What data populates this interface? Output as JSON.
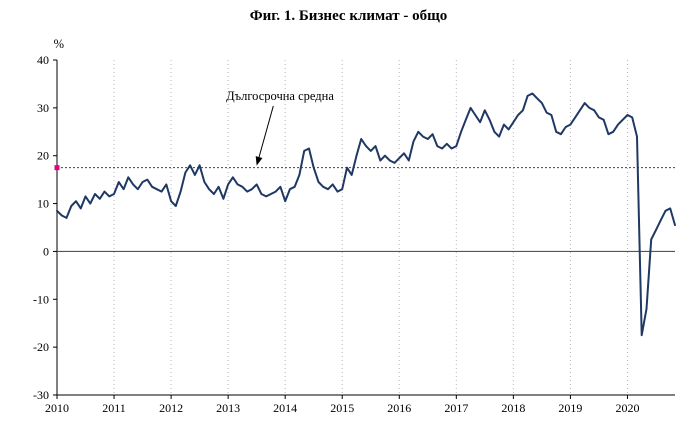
{
  "header": {
    "title": "Фиг. 1. Бизнес климат - общо"
  },
  "chart_data": {
    "type": "line",
    "title": "Фиг. 1. Бизнес климат - общо",
    "ylabel": "%",
    "ylim": [
      -30,
      40
    ],
    "yticks": [
      40,
      30,
      20,
      10,
      0,
      -10,
      -20,
      -30
    ],
    "x_year_ticks": [
      "2010",
      "2011",
      "2012",
      "2013",
      "2014",
      "2015",
      "2016",
      "2017",
      "2018",
      "2019",
      "2020"
    ],
    "x_start_month": "2010-01",
    "grid": {
      "vertical_dotted": true,
      "horizontal": false
    },
    "zero_line": true,
    "legend_position": "none",
    "long_term_average": {
      "label": "Дългосрочна средна",
      "value": 17.5,
      "marker_color": "#e6007e",
      "line_style": "dotted"
    },
    "series": [
      {
        "name": "Бизнес климат - общо",
        "color": "#1f3864",
        "values": [
          8.5,
          7.5,
          7.0,
          9.5,
          10.5,
          9.0,
          11.5,
          10.0,
          12.0,
          11.0,
          12.5,
          11.5,
          12.0,
          14.5,
          13.0,
          15.5,
          14.0,
          13.0,
          14.5,
          15.0,
          13.5,
          13.0,
          12.5,
          14.0,
          10.5,
          9.5,
          12.5,
          16.5,
          18.0,
          16.0,
          18.0,
          14.5,
          13.0,
          12.0,
          13.5,
          11.0,
          14.0,
          15.5,
          14.0,
          13.5,
          12.5,
          13.0,
          14.0,
          12.0,
          11.5,
          12.0,
          12.5,
          13.5,
          10.5,
          13.0,
          13.5,
          16.0,
          21.0,
          21.5,
          17.5,
          14.5,
          13.5,
          13.0,
          14.0,
          12.5,
          13.0,
          17.5,
          16.0,
          20.0,
          23.5,
          22.0,
          21.0,
          22.0,
          19.0,
          20.0,
          19.0,
          18.5,
          19.5,
          20.5,
          19.0,
          23.0,
          25.0,
          24.0,
          23.5,
          24.5,
          22.0,
          21.5,
          22.5,
          21.5,
          22.0,
          25.0,
          27.5,
          30.0,
          28.5,
          27.0,
          29.5,
          27.5,
          25.0,
          24.0,
          26.5,
          25.5,
          27.0,
          28.5,
          29.5,
          32.5,
          33.0,
          32.0,
          31.0,
          29.0,
          28.5,
          25.0,
          24.5,
          26.0,
          26.5,
          28.0,
          29.5,
          31.0,
          30.0,
          29.5,
          28.0,
          27.5,
          24.5,
          25.0,
          26.5,
          27.5,
          28.5,
          28.0,
          24.0,
          -17.5,
          -12.0,
          2.5,
          4.5,
          6.5,
          8.5,
          9.0,
          5.5
        ]
      }
    ]
  }
}
